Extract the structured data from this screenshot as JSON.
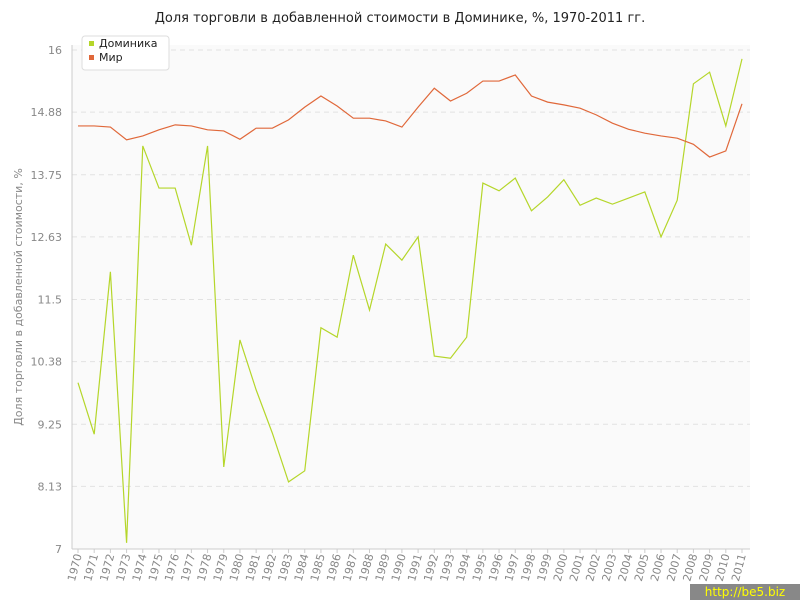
{
  "chart_data": {
    "type": "line",
    "title": "Доля торговли в добавленной стоимости в Доминике, %, 1970-2011 гг.",
    "y_label": "Доля торговли в добавленной стоимости, %",
    "categories": [
      "1970",
      "1971",
      "1972",
      "1973",
      "1974",
      "1975",
      "1976",
      "1977",
      "1978",
      "1979",
      "1980",
      "1981",
      "1982",
      "1983",
      "1984",
      "1985",
      "1986",
      "1987",
      "1988",
      "1989",
      "1990",
      "1991",
      "1992",
      "1993",
      "1994",
      "1995",
      "1996",
      "1997",
      "1998",
      "1999",
      "2000",
      "2001",
      "2002",
      "2003",
      "2004",
      "2005",
      "2006",
      "2007",
      "2008",
      "2009",
      "2010",
      "2011"
    ],
    "series": [
      {
        "name": "Доминика",
        "color": "#b5d62a",
        "values": [
          10.0,
          9.07,
          12.0,
          7.11,
          14.27,
          13.51,
          13.51,
          12.48,
          14.27,
          8.48,
          10.77,
          9.87,
          9.09,
          8.21,
          8.41,
          10.99,
          10.82,
          12.3,
          11.31,
          12.5,
          12.21,
          12.63,
          10.48,
          10.44,
          10.82,
          13.6,
          13.46,
          13.69,
          13.1,
          13.35,
          13.66,
          13.2,
          13.33,
          13.22,
          13.33,
          13.44,
          12.63,
          13.29,
          15.39,
          15.6,
          14.63,
          15.84
        ]
      },
      {
        "name": "Мир",
        "color": "#e0683a",
        "values": [
          14.63,
          14.63,
          14.61,
          14.38,
          14.45,
          14.56,
          14.65,
          14.63,
          14.56,
          14.54,
          14.39,
          14.59,
          14.59,
          14.74,
          14.97,
          15.17,
          14.99,
          14.77,
          14.77,
          14.72,
          14.61,
          14.97,
          15.31,
          15.08,
          15.22,
          15.44,
          15.44,
          15.55,
          15.17,
          15.06,
          15.01,
          14.95,
          14.83,
          14.68,
          14.57,
          14.5,
          14.45,
          14.41,
          14.3,
          14.07,
          14.18,
          15.03
        ]
      }
    ],
    "ylim": [
      7,
      16
    ],
    "yticks": [
      7,
      8.13,
      9.25,
      10.38,
      11.5,
      12.63,
      13.75,
      14.88,
      16
    ],
    "grid": true,
    "legend": "top-left",
    "watermark": "http://be5.biz"
  }
}
